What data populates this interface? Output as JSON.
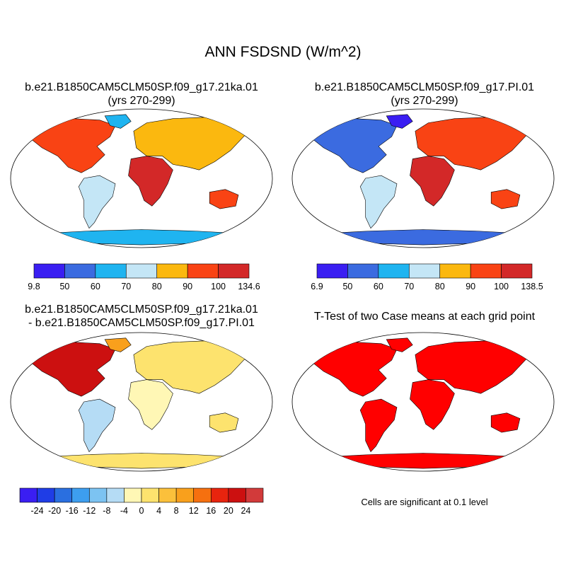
{
  "figure": {
    "title": "ANN FSDSND (W/m^2)"
  },
  "panels": {
    "p1": {
      "title_line1": "b.e21.B1850CAM5CLM50SP.f09_g17.21ka.01",
      "title_line2": "(yrs 270-299)"
    },
    "p2": {
      "title_line1": "b.e21.B1850CAM5CLM50SP.f09_g17.PI.01",
      "title_line2": "(yrs 270-299)"
    },
    "p3": {
      "title_line1": "b.e21.B1850CAM5CLM50SP.f09_g17.21ka.01",
      "title_line2": "- b.e21.B1850CAM5CLM50SP.f09_g17.PI.01"
    },
    "p4": {
      "title_line1": "T-Test of two Case means at each grid point",
      "note": "Cells are significant at 0.1 level"
    }
  },
  "colorbars": {
    "cb1": {
      "colors": [
        "#3a1ef2",
        "#3b6be0",
        "#1fb4f0",
        "#c4e6f6",
        "#fbb80f",
        "#f94314",
        "#d32828"
      ],
      "labels": [
        "9.8",
        "50",
        "60",
        "70",
        "80",
        "90",
        "100",
        "134.6"
      ]
    },
    "cb2": {
      "colors": [
        "#3a1ef2",
        "#3b6be0",
        "#1fb4f0",
        "#c4e6f6",
        "#fbb80f",
        "#f94314",
        "#d32828"
      ],
      "labels": [
        "6.9",
        "50",
        "60",
        "70",
        "80",
        "90",
        "100",
        "138.5"
      ]
    },
    "cb3": {
      "colors": [
        "#3a1ef2",
        "#1f3de6",
        "#2a6fe0",
        "#3d9eef",
        "#7cc3f2",
        "#b5dcf5",
        "#fff7b5",
        "#fde36e",
        "#fbc03b",
        "#f9a01c",
        "#f6700f",
        "#e8240e",
        "#cc1010",
        "#d23a3a"
      ],
      "labels": [
        "-24",
        "-20",
        "-16",
        "-12",
        "-8",
        "-4",
        "0",
        "4",
        "8",
        "12",
        "16",
        "20",
        "24"
      ]
    }
  },
  "colors": {
    "significant": "#ff0000",
    "ocean": "#ffffff",
    "outline": "#000000"
  }
}
